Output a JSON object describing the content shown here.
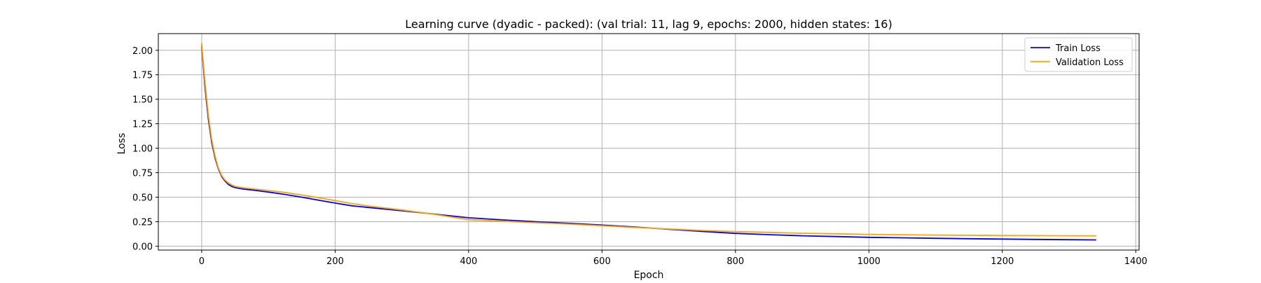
{
  "chart_data": {
    "type": "line",
    "title": "Learning curve (dyadic - packed): (val trial: 11, lag 9, epochs: 2000, hidden states: 16)",
    "xlabel": "Epoch",
    "ylabel": "Loss",
    "xlim": [
      -65,
      1405
    ],
    "ylim": [
      -0.04,
      2.17
    ],
    "xticks": [
      0,
      200,
      400,
      600,
      800,
      1000,
      1200,
      1400
    ],
    "yticks": [
      0.0,
      0.25,
      0.5,
      0.75,
      1.0,
      1.25,
      1.5,
      1.75,
      2.0
    ],
    "xtick_labels": [
      "0",
      "200",
      "400",
      "600",
      "800",
      "1000",
      "1200",
      "1400"
    ],
    "ytick_labels": [
      "0.00",
      "0.25",
      "0.50",
      "0.75",
      "1.00",
      "1.25",
      "1.50",
      "1.75",
      "2.00"
    ],
    "grid": true,
    "legend_position": "top-right",
    "series": [
      {
        "name": "Train Loss",
        "color": "#0000ff",
        "x": [
          0,
          5,
          10,
          15,
          20,
          25,
          30,
          35,
          40,
          45,
          50,
          60,
          70,
          80,
          100,
          125,
          150,
          175,
          200,
          225,
          250,
          300,
          350,
          400,
          450,
          500,
          550,
          600,
          650,
          700,
          750,
          800,
          850,
          900,
          950,
          1000,
          1050,
          1100,
          1150,
          1200,
          1250,
          1300,
          1340
        ],
        "y": [
          2.04,
          1.62,
          1.3,
          1.06,
          0.9,
          0.79,
          0.71,
          0.665,
          0.63,
          0.61,
          0.598,
          0.585,
          0.577,
          0.57,
          0.552,
          0.528,
          0.5,
          0.47,
          0.44,
          0.412,
          0.395,
          0.362,
          0.326,
          0.29,
          0.268,
          0.25,
          0.233,
          0.215,
          0.195,
          0.172,
          0.15,
          0.13,
          0.117,
          0.106,
          0.098,
          0.09,
          0.085,
          0.08,
          0.076,
          0.072,
          0.069,
          0.066,
          0.064
        ]
      },
      {
        "name": "Validation Loss",
        "color": "#ffa500",
        "x": [
          0,
          5,
          10,
          15,
          20,
          25,
          30,
          35,
          40,
          45,
          50,
          60,
          70,
          80,
          100,
          125,
          150,
          175,
          200,
          225,
          250,
          300,
          350,
          400,
          450,
          500,
          550,
          600,
          650,
          700,
          750,
          800,
          850,
          900,
          950,
          1000,
          1050,
          1100,
          1150,
          1200,
          1250,
          1300,
          1340
        ],
        "y": [
          2.07,
          1.67,
          1.34,
          1.09,
          0.92,
          0.8,
          0.72,
          0.675,
          0.645,
          0.625,
          0.61,
          0.598,
          0.59,
          0.583,
          0.568,
          0.548,
          0.522,
          0.495,
          0.465,
          0.435,
          0.41,
          0.37,
          0.323,
          0.27,
          0.255,
          0.24,
          0.225,
          0.208,
          0.19,
          0.175,
          0.16,
          0.148,
          0.14,
          0.132,
          0.126,
          0.12,
          0.116,
          0.113,
          0.11,
          0.108,
          0.107,
          0.106,
          0.105
        ]
      }
    ]
  }
}
